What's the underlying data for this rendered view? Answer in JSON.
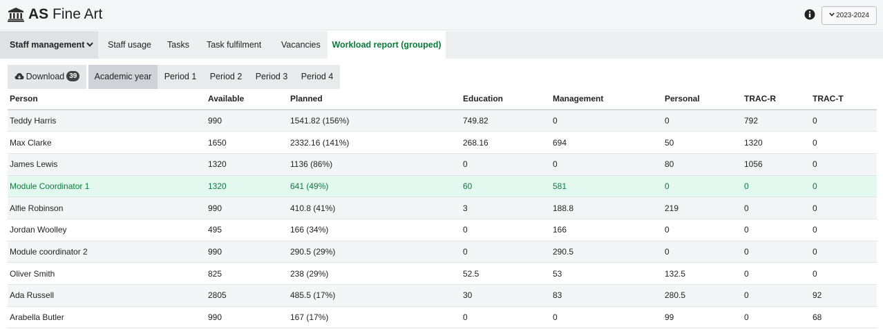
{
  "header": {
    "title_bold": "AS",
    "title_rest": " Fine Art",
    "year_selector": "2023-2024",
    "logo_icon": "institution-icon",
    "info_icon": "info-icon"
  },
  "nav": {
    "items": [
      {
        "label": "Staff management"
      },
      {
        "label": "Staff usage"
      },
      {
        "label": "Tasks"
      },
      {
        "label": "Task fulfilment"
      },
      {
        "label": "Vacancies"
      },
      {
        "label": "Workload report (grouped)"
      }
    ],
    "active": "Workload report (grouped)"
  },
  "subtabs": {
    "download_label": "Download",
    "download_count": "39",
    "items": [
      {
        "label": "Academic year"
      },
      {
        "label": "Period 1"
      },
      {
        "label": "Period 2"
      },
      {
        "label": "Period 3"
      },
      {
        "label": "Period 4"
      }
    ],
    "active": "Academic year"
  },
  "table": {
    "columns": [
      "Person",
      "Available",
      "Planned",
      "Education",
      "Management",
      "Personal",
      "TRAC-R",
      "TRAC-T"
    ],
    "rows": [
      [
        "Teddy Harris",
        "990",
        "1541.82 (156%)",
        "749.82",
        "0",
        "0",
        "792",
        "0"
      ],
      [
        "Max Clarke",
        "1650",
        "2332.16 (141%)",
        "268.16",
        "694",
        "50",
        "1320",
        "0"
      ],
      [
        "James Lewis",
        "1320",
        "1136 (86%)",
        "0",
        "0",
        "80",
        "1056",
        "0"
      ],
      [
        "Module Coordinator 1",
        "1320",
        "641 (49%)",
        "60",
        "581",
        "0",
        "0",
        "0"
      ],
      [
        "Alfie Robinson",
        "990",
        "410.8 (41%)",
        "3",
        "188.8",
        "219",
        "0",
        "0"
      ],
      [
        "Jordan Woolley",
        "495",
        "166 (34%)",
        "0",
        "166",
        "0",
        "0",
        "0"
      ],
      [
        "Module coordinator 2",
        "990",
        "290.5 (29%)",
        "0",
        "290.5",
        "0",
        "0",
        "0"
      ],
      [
        "Oliver Smith",
        "825",
        "238 (29%)",
        "52.5",
        "53",
        "132.5",
        "0",
        "0"
      ],
      [
        "Ada Russell",
        "2805",
        "485.5 (17%)",
        "30",
        "83",
        "280.5",
        "0",
        "92"
      ],
      [
        "Arabella Butler",
        "990",
        "167 (17%)",
        "0",
        "0",
        "99",
        "0",
        "68"
      ]
    ],
    "highlighted_row": "Module Coordinator 1"
  },
  "colors": {
    "accent_green": "#0a7a3c",
    "highlight_bg": "#e3f8ee"
  }
}
